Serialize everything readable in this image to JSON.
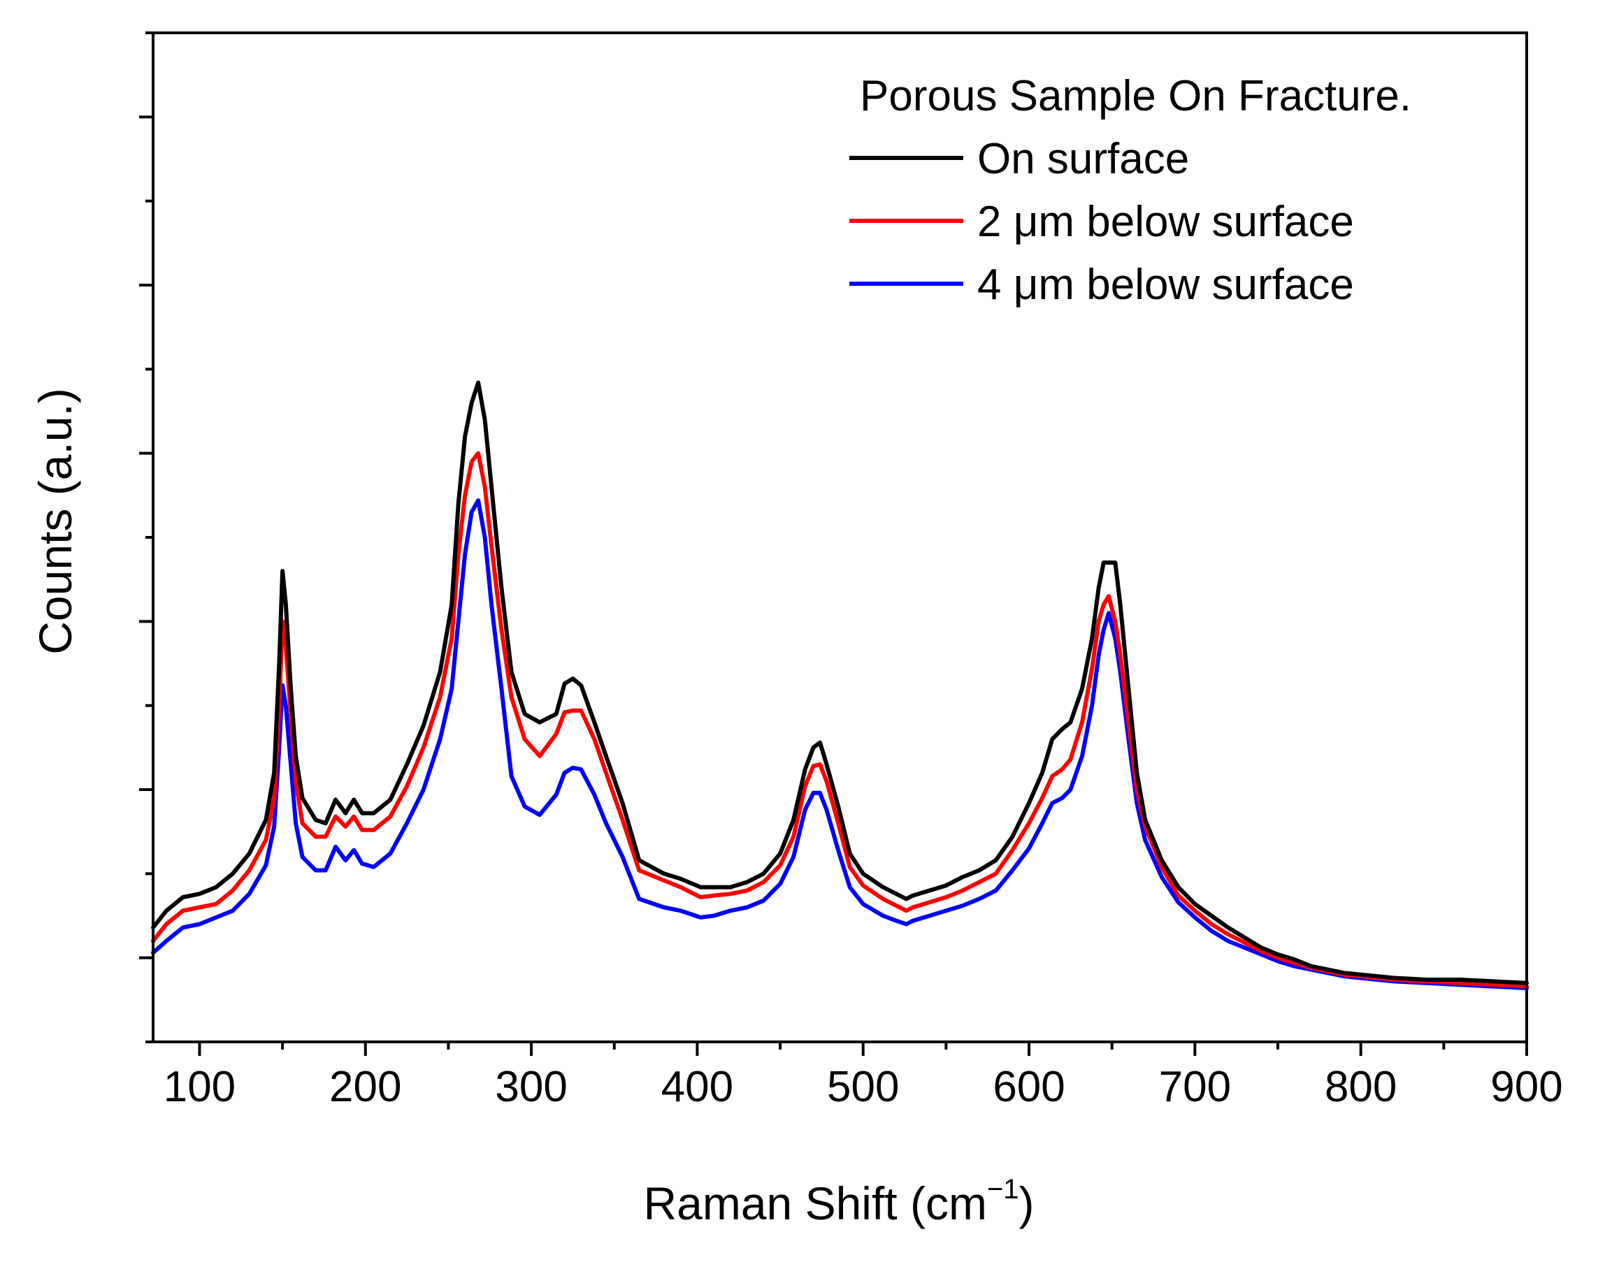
{
  "chart_data": {
    "type": "line",
    "title": "",
    "xlabel": "Raman Shift (cm",
    "xlabel_sup": "−1",
    "xlabel_close": ")",
    "ylabel": "Counts (a.u.)",
    "xlim": [
      72,
      900
    ],
    "ylim": [
      -0.5,
      5.5
    ],
    "xticks": [
      100,
      200,
      300,
      400,
      500,
      600,
      700,
      800,
      900
    ],
    "xticklabels": [
      "100",
      "200",
      "300",
      "400",
      "500",
      "600",
      "700",
      "800",
      "900"
    ],
    "yticks_major": [
      0,
      1,
      2,
      3,
      4,
      5
    ],
    "ytick_labels_shown": false,
    "legend": {
      "title": "Porous Sample On Fracture.",
      "position": "top-right"
    },
    "series": [
      {
        "name": "On surface",
        "color": "#000000",
        "points": [
          [
            72,
            0.18
          ],
          [
            80,
            0.28
          ],
          [
            90,
            0.36
          ],
          [
            100,
            0.38
          ],
          [
            110,
            0.42
          ],
          [
            120,
            0.5
          ],
          [
            130,
            0.62
          ],
          [
            140,
            0.82
          ],
          [
            145,
            1.1
          ],
          [
            148,
            1.75
          ],
          [
            150,
            2.3
          ],
          [
            152,
            2.1
          ],
          [
            155,
            1.6
          ],
          [
            158,
            1.2
          ],
          [
            162,
            0.95
          ],
          [
            170,
            0.82
          ],
          [
            176,
            0.8
          ],
          [
            182,
            0.94
          ],
          [
            188,
            0.86
          ],
          [
            193,
            0.94
          ],
          [
            198,
            0.86
          ],
          [
            205,
            0.86
          ],
          [
            215,
            0.94
          ],
          [
            225,
            1.15
          ],
          [
            235,
            1.38
          ],
          [
            245,
            1.7
          ],
          [
            252,
            2.1
          ],
          [
            256,
            2.7
          ],
          [
            260,
            3.1
          ],
          [
            264,
            3.3
          ],
          [
            268,
            3.42
          ],
          [
            272,
            3.2
          ],
          [
            276,
            2.8
          ],
          [
            282,
            2.2
          ],
          [
            288,
            1.7
          ],
          [
            296,
            1.45
          ],
          [
            305,
            1.4
          ],
          [
            315,
            1.45
          ],
          [
            320,
            1.63
          ],
          [
            325,
            1.66
          ],
          [
            330,
            1.62
          ],
          [
            338,
            1.4
          ],
          [
            345,
            1.2
          ],
          [
            355,
            0.92
          ],
          [
            365,
            0.58
          ],
          [
            380,
            0.5
          ],
          [
            390,
            0.47
          ],
          [
            402,
            0.42
          ],
          [
            410,
            0.42
          ],
          [
            420,
            0.42
          ],
          [
            430,
            0.45
          ],
          [
            440,
            0.5
          ],
          [
            450,
            0.62
          ],
          [
            458,
            0.82
          ],
          [
            465,
            1.12
          ],
          [
            470,
            1.25
          ],
          [
            474,
            1.28
          ],
          [
            478,
            1.15
          ],
          [
            485,
            0.9
          ],
          [
            492,
            0.62
          ],
          [
            500,
            0.5
          ],
          [
            512,
            0.42
          ],
          [
            520,
            0.38
          ],
          [
            526,
            0.35
          ],
          [
            530,
            0.37
          ],
          [
            540,
            0.4
          ],
          [
            550,
            0.43
          ],
          [
            560,
            0.48
          ],
          [
            570,
            0.52
          ],
          [
            580,
            0.58
          ],
          [
            590,
            0.72
          ],
          [
            600,
            0.92
          ],
          [
            608,
            1.1
          ],
          [
            614,
            1.3
          ],
          [
            620,
            1.36
          ],
          [
            625,
            1.4
          ],
          [
            632,
            1.6
          ],
          [
            638,
            1.9
          ],
          [
            642,
            2.2
          ],
          [
            645,
            2.35
          ],
          [
            648,
            2.35
          ],
          [
            652,
            2.35
          ],
          [
            655,
            2.1
          ],
          [
            660,
            1.6
          ],
          [
            665,
            1.1
          ],
          [
            670,
            0.82
          ],
          [
            680,
            0.58
          ],
          [
            690,
            0.42
          ],
          [
            700,
            0.32
          ],
          [
            710,
            0.25
          ],
          [
            720,
            0.18
          ],
          [
            730,
            0.12
          ],
          [
            740,
            0.06
          ],
          [
            750,
            0.02
          ],
          [
            760,
            -0.01
          ],
          [
            770,
            -0.05
          ],
          [
            780,
            -0.07
          ],
          [
            790,
            -0.09
          ],
          [
            800,
            -0.1
          ],
          [
            810,
            -0.11
          ],
          [
            820,
            -0.12
          ],
          [
            840,
            -0.13
          ],
          [
            860,
            -0.13
          ],
          [
            880,
            -0.14
          ],
          [
            900,
            -0.15
          ]
        ]
      },
      {
        "name": "2 μm below surface",
        "color": "#ff0000",
        "points": [
          [
            72,
            0.1
          ],
          [
            80,
            0.2
          ],
          [
            90,
            0.28
          ],
          [
            100,
            0.3
          ],
          [
            110,
            0.32
          ],
          [
            120,
            0.4
          ],
          [
            130,
            0.52
          ],
          [
            140,
            0.7
          ],
          [
            145,
            0.95
          ],
          [
            148,
            1.5
          ],
          [
            150,
            2.0
          ],
          [
            152,
            1.85
          ],
          [
            155,
            1.45
          ],
          [
            158,
            1.05
          ],
          [
            162,
            0.8
          ],
          [
            170,
            0.72
          ],
          [
            176,
            0.72
          ],
          [
            182,
            0.84
          ],
          [
            188,
            0.78
          ],
          [
            193,
            0.84
          ],
          [
            198,
            0.76
          ],
          [
            205,
            0.76
          ],
          [
            215,
            0.84
          ],
          [
            225,
            1.02
          ],
          [
            235,
            1.25
          ],
          [
            245,
            1.55
          ],
          [
            252,
            1.9
          ],
          [
            256,
            2.4
          ],
          [
            260,
            2.75
          ],
          [
            264,
            2.95
          ],
          [
            268,
            3.0
          ],
          [
            272,
            2.8
          ],
          [
            276,
            2.45
          ],
          [
            282,
            1.95
          ],
          [
            288,
            1.55
          ],
          [
            296,
            1.3
          ],
          [
            305,
            1.2
          ],
          [
            315,
            1.33
          ],
          [
            320,
            1.46
          ],
          [
            325,
            1.47
          ],
          [
            330,
            1.47
          ],
          [
            338,
            1.3
          ],
          [
            345,
            1.1
          ],
          [
            355,
            0.82
          ],
          [
            365,
            0.52
          ],
          [
            380,
            0.46
          ],
          [
            390,
            0.42
          ],
          [
            402,
            0.36
          ],
          [
            410,
            0.37
          ],
          [
            420,
            0.38
          ],
          [
            430,
            0.4
          ],
          [
            440,
            0.45
          ],
          [
            450,
            0.55
          ],
          [
            458,
            0.72
          ],
          [
            465,
            1.02
          ],
          [
            470,
            1.14
          ],
          [
            474,
            1.15
          ],
          [
            478,
            1.05
          ],
          [
            485,
            0.8
          ],
          [
            492,
            0.54
          ],
          [
            500,
            0.43
          ],
          [
            512,
            0.35
          ],
          [
            520,
            0.31
          ],
          [
            526,
            0.28
          ],
          [
            530,
            0.3
          ],
          [
            540,
            0.33
          ],
          [
            550,
            0.36
          ],
          [
            560,
            0.4
          ],
          [
            570,
            0.45
          ],
          [
            580,
            0.5
          ],
          [
            590,
            0.64
          ],
          [
            600,
            0.8
          ],
          [
            608,
            0.95
          ],
          [
            614,
            1.08
          ],
          [
            620,
            1.12
          ],
          [
            625,
            1.18
          ],
          [
            632,
            1.4
          ],
          [
            638,
            1.72
          ],
          [
            642,
            2.0
          ],
          [
            645,
            2.1
          ],
          [
            648,
            2.15
          ],
          [
            652,
            2.0
          ],
          [
            655,
            1.8
          ],
          [
            660,
            1.4
          ],
          [
            665,
            1.0
          ],
          [
            670,
            0.78
          ],
          [
            680,
            0.54
          ],
          [
            690,
            0.37
          ],
          [
            700,
            0.28
          ],
          [
            710,
            0.2
          ],
          [
            720,
            0.14
          ],
          [
            730,
            0.09
          ],
          [
            740,
            0.04
          ],
          [
            750,
            0.0
          ],
          [
            760,
            -0.03
          ],
          [
            770,
            -0.06
          ],
          [
            780,
            -0.08
          ],
          [
            790,
            -0.1
          ],
          [
            800,
            -0.11
          ],
          [
            810,
            -0.12
          ],
          [
            820,
            -0.13
          ],
          [
            840,
            -0.14
          ],
          [
            860,
            -0.15
          ],
          [
            880,
            -0.16
          ],
          [
            900,
            -0.17
          ]
        ]
      },
      {
        "name": "4 μm below surface",
        "color": "#0000ff",
        "points": [
          [
            72,
            0.03
          ],
          [
            80,
            0.1
          ],
          [
            90,
            0.18
          ],
          [
            100,
            0.2
          ],
          [
            110,
            0.24
          ],
          [
            120,
            0.28
          ],
          [
            130,
            0.38
          ],
          [
            140,
            0.55
          ],
          [
            145,
            0.78
          ],
          [
            148,
            1.25
          ],
          [
            150,
            1.62
          ],
          [
            152,
            1.5
          ],
          [
            155,
            1.15
          ],
          [
            158,
            0.8
          ],
          [
            162,
            0.6
          ],
          [
            170,
            0.52
          ],
          [
            176,
            0.52
          ],
          [
            182,
            0.66
          ],
          [
            188,
            0.58
          ],
          [
            193,
            0.64
          ],
          [
            198,
            0.56
          ],
          [
            205,
            0.54
          ],
          [
            215,
            0.62
          ],
          [
            225,
            0.8
          ],
          [
            235,
            1.0
          ],
          [
            245,
            1.3
          ],
          [
            252,
            1.6
          ],
          [
            256,
            2.0
          ],
          [
            260,
            2.4
          ],
          [
            264,
            2.65
          ],
          [
            268,
            2.72
          ],
          [
            272,
            2.5
          ],
          [
            276,
            2.1
          ],
          [
            282,
            1.6
          ],
          [
            288,
            1.08
          ],
          [
            296,
            0.9
          ],
          [
            305,
            0.85
          ],
          [
            315,
            0.97
          ],
          [
            320,
            1.1
          ],
          [
            325,
            1.13
          ],
          [
            330,
            1.12
          ],
          [
            338,
            0.97
          ],
          [
            345,
            0.8
          ],
          [
            355,
            0.6
          ],
          [
            365,
            0.35
          ],
          [
            380,
            0.3
          ],
          [
            390,
            0.28
          ],
          [
            402,
            0.24
          ],
          [
            410,
            0.25
          ],
          [
            420,
            0.28
          ],
          [
            430,
            0.3
          ],
          [
            440,
            0.34
          ],
          [
            450,
            0.44
          ],
          [
            458,
            0.6
          ],
          [
            465,
            0.88
          ],
          [
            470,
            0.98
          ],
          [
            474,
            0.98
          ],
          [
            478,
            0.88
          ],
          [
            485,
            0.64
          ],
          [
            492,
            0.42
          ],
          [
            500,
            0.32
          ],
          [
            512,
            0.25
          ],
          [
            520,
            0.22
          ],
          [
            526,
            0.2
          ],
          [
            530,
            0.22
          ],
          [
            540,
            0.25
          ],
          [
            550,
            0.28
          ],
          [
            560,
            0.31
          ],
          [
            570,
            0.35
          ],
          [
            580,
            0.4
          ],
          [
            590,
            0.52
          ],
          [
            600,
            0.65
          ],
          [
            608,
            0.8
          ],
          [
            614,
            0.92
          ],
          [
            620,
            0.95
          ],
          [
            625,
            1.0
          ],
          [
            632,
            1.2
          ],
          [
            638,
            1.5
          ],
          [
            642,
            1.8
          ],
          [
            645,
            1.95
          ],
          [
            648,
            2.05
          ],
          [
            652,
            1.9
          ],
          [
            655,
            1.7
          ],
          [
            660,
            1.3
          ],
          [
            665,
            0.92
          ],
          [
            670,
            0.7
          ],
          [
            680,
            0.48
          ],
          [
            690,
            0.33
          ],
          [
            700,
            0.24
          ],
          [
            710,
            0.16
          ],
          [
            720,
            0.1
          ],
          [
            730,
            0.06
          ],
          [
            740,
            0.02
          ],
          [
            750,
            -0.02
          ],
          [
            760,
            -0.05
          ],
          [
            770,
            -0.07
          ],
          [
            780,
            -0.09
          ],
          [
            790,
            -0.11
          ],
          [
            800,
            -0.12
          ],
          [
            810,
            -0.13
          ],
          [
            820,
            -0.14
          ],
          [
            840,
            -0.15
          ],
          [
            860,
            -0.16
          ],
          [
            880,
            -0.17
          ],
          [
            900,
            -0.18
          ]
        ]
      }
    ]
  }
}
